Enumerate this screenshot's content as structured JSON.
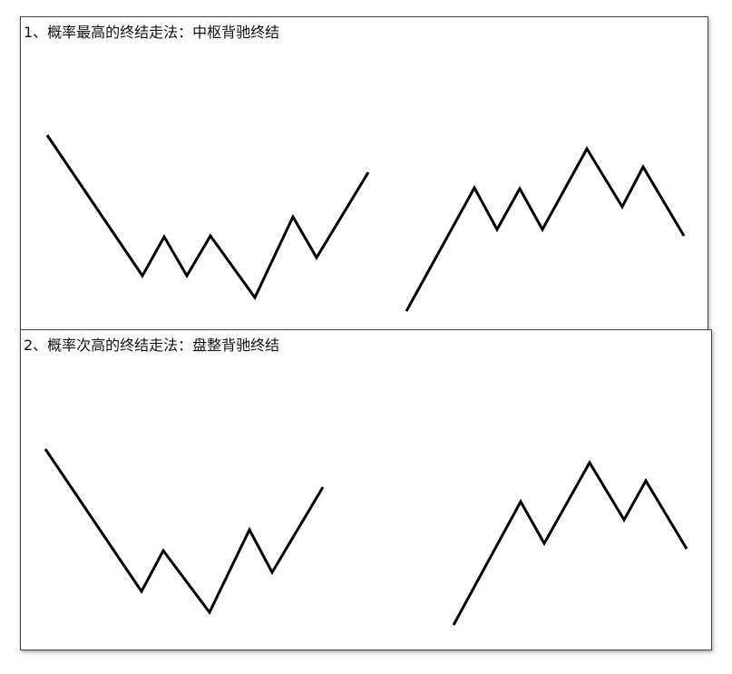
{
  "panels": [
    {
      "title": "1、概率最高的终结走法：中枢背驰终结"
    },
    {
      "title": "2、概率次高的终结走法：盘整背驰终结"
    }
  ]
}
